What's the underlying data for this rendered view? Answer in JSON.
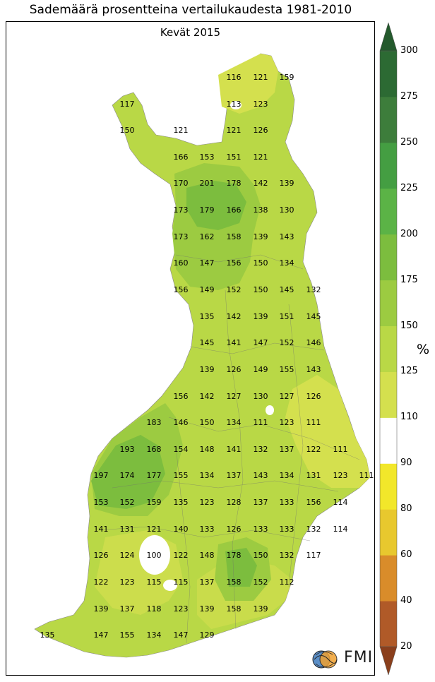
{
  "title": "Sademäärä prosentteina vertailukaudesta 1981-2010",
  "subtitle": "Kevät 2015",
  "unit": "%",
  "logo_text": "FMI",
  "colorbar": {
    "ticks": [
      20,
      40,
      60,
      80,
      90,
      110,
      125,
      150,
      175,
      200,
      225,
      250,
      275,
      300
    ],
    "bands": [
      {
        "from": 20,
        "to": 40,
        "color": "#b05a28"
      },
      {
        "from": 40,
        "to": 60,
        "color": "#d98c2a"
      },
      {
        "from": 60,
        "to": 80,
        "color": "#e8c82e"
      },
      {
        "from": 80,
        "to": 90,
        "color": "#f2e72a"
      },
      {
        "from": 90,
        "to": 110,
        "color": "#ffffff"
      },
      {
        "from": 110,
        "to": 125,
        "color": "#d4e04e"
      },
      {
        "from": 125,
        "to": 150,
        "color": "#b9d846"
      },
      {
        "from": 150,
        "to": 175,
        "color": "#9ccb41"
      },
      {
        "from": 175,
        "to": 200,
        "color": "#7cbd3e"
      },
      {
        "from": 200,
        "to": 225,
        "color": "#5bb346"
      },
      {
        "from": 225,
        "to": 250,
        "color": "#449e42"
      },
      {
        "from": 250,
        "to": 275,
        "color": "#3d7d3b"
      },
      {
        "from": 275,
        "to": 300,
        "color": "#2c6a33"
      }
    ],
    "under_color": "#8a3f1c",
    "over_color": "#245a2d"
  },
  "stations": [
    [
      "116",
      "121",
      "159"
    ],
    [
      "117",
      "113",
      "123"
    ],
    [
      "150",
      "121",
      "121",
      "126"
    ],
    [
      "166",
      "153",
      "151",
      "121"
    ],
    [
      "170",
      "201",
      "178",
      "142",
      "139"
    ],
    [
      "173",
      "179",
      "166",
      "138",
      "130"
    ],
    [
      "173",
      "162",
      "158",
      "139",
      "143"
    ],
    [
      "160",
      "147",
      "156",
      "150",
      "134"
    ],
    [
      "156",
      "149",
      "152",
      "150",
      "145",
      "132"
    ],
    [
      "135",
      "142",
      "139",
      "151",
      "145"
    ],
    [
      "145",
      "141",
      "147",
      "152",
      "146"
    ],
    [
      "139",
      "126",
      "149",
      "155",
      "143"
    ],
    [
      "156",
      "142",
      "127",
      "130",
      "127",
      "126"
    ],
    [
      "183",
      "146",
      "150",
      "134",
      "111",
      "123",
      "111"
    ],
    [
      "193",
      "168",
      "154",
      "148",
      "141",
      "132",
      "137",
      "122",
      "111"
    ],
    [
      "197",
      "174",
      "177",
      "155",
      "134",
      "137",
      "143",
      "134",
      "131",
      "123",
      "111"
    ],
    [
      "153",
      "152",
      "159",
      "135",
      "123",
      "128",
      "137",
      "133",
      "156",
      "114"
    ],
    [
      "141",
      "131",
      "121",
      "140",
      "133",
      "126",
      "133",
      "133",
      "132",
      "114"
    ],
    [
      "126",
      "124",
      "100",
      "122",
      "148",
      "178",
      "150",
      "132",
      "117"
    ],
    [
      "122",
      "123",
      "115",
      "115",
      "137",
      "158",
      "152",
      "112"
    ],
    [
      "139",
      "137",
      "118",
      "123",
      "139",
      "158",
      "139"
    ],
    [
      "135",
      "147",
      "155",
      "134",
      "147",
      "129"
    ]
  ]
}
